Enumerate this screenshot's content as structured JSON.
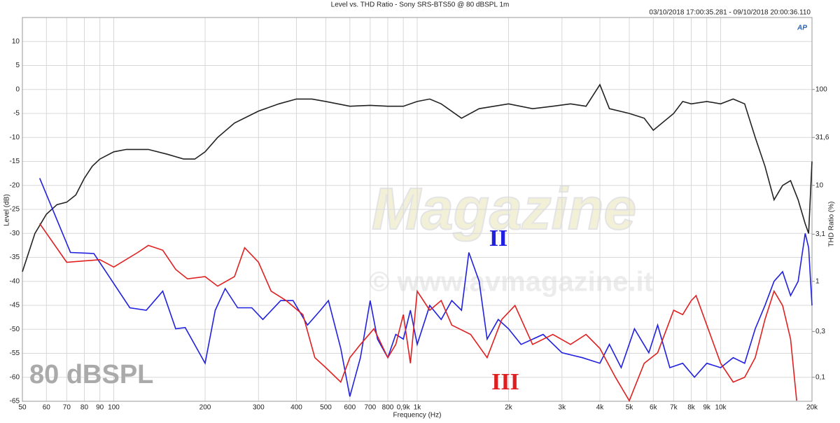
{
  "chart_data": {
    "type": "line",
    "title": "Level vs. THD Ratio - Sony SRS-BTS50 @ 80 dBSPL 1m",
    "subtitle": "03/10/2018 17:00:35.281 - 09/10/2018 20:00:36.110",
    "logo": "AP",
    "xlabel": "Frequency (Hz)",
    "ylabel": "Level (dB)",
    "y2label": "THD Ratio (%)",
    "xlog": true,
    "y2log": true,
    "grid": true,
    "xlim": [
      50,
      20000
    ],
    "xticks": [
      50,
      60,
      70,
      80,
      90,
      100,
      200,
      300,
      400,
      500,
      600,
      700,
      800,
      {
        "value": 900,
        "label": "0,9k"
      },
      {
        "value": 1000,
        "label": "1k"
      },
      {
        "value": 2000,
        "label": "2k"
      },
      {
        "value": 3000,
        "label": "3k"
      },
      {
        "value": 4000,
        "label": "4k"
      },
      {
        "value": 5000,
        "label": "5k"
      },
      {
        "value": 6000,
        "label": "6k"
      },
      {
        "value": 7000,
        "label": "7k"
      },
      {
        "value": 8000,
        "label": "8k"
      },
      {
        "value": 9000,
        "label": "9k"
      },
      {
        "value": 10000,
        "label": "10k"
      },
      {
        "value": 20000,
        "label": "20k"
      }
    ],
    "ylim": [
      -65,
      15
    ],
    "yticks": [
      10,
      5,
      0,
      -5,
      -10,
      -15,
      -20,
      -25,
      -30,
      -35,
      -40,
      -45,
      -50,
      -55,
      -60,
      -65
    ],
    "y2lim": [
      0.0562,
      562
    ],
    "y2ticks": [
      100,
      {
        "value": 31.6,
        "label": "31,6"
      },
      10,
      {
        "value": 3.1,
        "label": "3,1"
      },
      1,
      {
        "value": 0.3,
        "label": "0,3"
      },
      {
        "value": 0.1,
        "label": "0,1"
      }
    ],
    "annotations": [
      "80 dBSPL",
      "Magazine",
      "© www.avmagazine.it"
    ],
    "series": [
      {
        "color": "#222222",
        "x": [
          50,
          55,
          60,
          65,
          70,
          75,
          80,
          85,
          90,
          100,
          110,
          130,
          150,
          170,
          185,
          200,
          220,
          250,
          300,
          350,
          400,
          450,
          500,
          600,
          700,
          800,
          900,
          1000,
          1100,
          1200,
          1400,
          1600,
          2000,
          2400,
          2800,
          3200,
          3600,
          4000,
          4300,
          5000,
          5600,
          6000,
          7000,
          7500,
          8000,
          9000,
          10000,
          11000,
          12000,
          13000,
          14000,
          15000,
          16000,
          17000,
          18000,
          19000,
          19500,
          20000
        ],
        "values": [
          -38,
          -30,
          -26,
          -24,
          -23.5,
          -22,
          -18.5,
          -16,
          -14.5,
          -13,
          -12.5,
          -12.5,
          -13.5,
          -14.5,
          -14.5,
          -13,
          -10,
          -7,
          -4.5,
          -3,
          -2,
          -2,
          -2.5,
          -3.5,
          -3.3,
          -3.5,
          -3.5,
          -2.5,
          -2,
          -3,
          -6,
          -4,
          -3,
          -4,
          -3.5,
          -3,
          -3.5,
          1,
          -4,
          -5,
          -6,
          -8.5,
          -5,
          -2.5,
          -3,
          -2.5,
          -3,
          -2,
          -3,
          -10,
          -16,
          -23,
          -20,
          -19,
          -23,
          -28,
          -30,
          -15
        ]
      },
      {
        "name": "II",
        "color": "#2020e0",
        "axis": "y2",
        "x": [
          57,
          72,
          86,
          113,
          128,
          145,
          160,
          172,
          200,
          216,
          233,
          256,
          285,
          310,
          355,
          390,
          435,
          480,
          510,
          560,
          600,
          650,
          700,
          740,
          800,
          850,
          900,
          950,
          1000,
          1100,
          1200,
          1300,
          1400,
          1480,
          1600,
          1700,
          1850,
          2000,
          2200,
          2600,
          3000,
          3500,
          4000,
          4300,
          4700,
          5200,
          5800,
          6200,
          6800,
          7500,
          8200,
          9000,
          10000,
          11000,
          12000,
          13000,
          14000,
          15000,
          16000,
          17000,
          18000,
          19000,
          19500,
          20000
        ],
        "values": [
          11.9,
          2.0,
          1.95,
          0.53,
          0.5,
          0.79,
          0.32,
          0.33,
          0.14,
          0.5,
          0.84,
          0.53,
          0.53,
          0.4,
          0.63,
          0.63,
          0.35,
          0.5,
          0.63,
          0.2,
          0.063,
          0.16,
          0.63,
          0.25,
          0.16,
          0.28,
          0.25,
          0.5,
          0.22,
          0.56,
          0.4,
          0.63,
          0.5,
          2.0,
          1.0,
          0.25,
          0.4,
          0.32,
          0.22,
          0.28,
          0.18,
          0.16,
          0.14,
          0.22,
          0.126,
          0.32,
          0.18,
          0.35,
          0.126,
          0.14,
          0.1,
          0.14,
          0.126,
          0.16,
          0.14,
          0.32,
          0.56,
          1.0,
          1.26,
          0.71,
          1.0,
          3.16,
          2.24,
          0.56
        ]
      },
      {
        "name": "III",
        "color": "#e02020",
        "axis": "y2",
        "x": [
          57,
          70,
          90,
          100,
          120,
          130,
          145,
          160,
          175,
          200,
          220,
          250,
          270,
          300,
          330,
          370,
          420,
          460,
          500,
          560,
          600,
          650,
          720,
          800,
          850,
          900,
          950,
          1000,
          1100,
          1200,
          1300,
          1500,
          1700,
          1900,
          2100,
          2400,
          2800,
          3200,
          3600,
          4000,
          4500,
          5000,
          5600,
          6200,
          7000,
          7500,
          8000,
          8300,
          9000,
          10000,
          11000,
          12000,
          13000,
          14000,
          15000,
          16000,
          17000,
          17800
        ],
        "values": [
          4.0,
          1.58,
          1.68,
          1.41,
          2.0,
          2.37,
          2.11,
          1.33,
          1.06,
          1.12,
          0.89,
          1.12,
          2.24,
          1.58,
          0.79,
          0.63,
          0.45,
          0.16,
          0.126,
          0.089,
          0.16,
          0.22,
          0.32,
          0.16,
          0.22,
          0.45,
          0.14,
          0.79,
          0.5,
          0.63,
          0.35,
          0.28,
          0.16,
          0.4,
          0.56,
          0.22,
          0.28,
          0.22,
          0.28,
          0.2,
          0.1,
          0.057,
          0.14,
          0.18,
          0.5,
          0.45,
          0.63,
          0.71,
          0.35,
          0.14,
          0.089,
          0.1,
          0.16,
          0.4,
          0.79,
          0.56,
          0.25,
          0.057
        ]
      }
    ]
  }
}
